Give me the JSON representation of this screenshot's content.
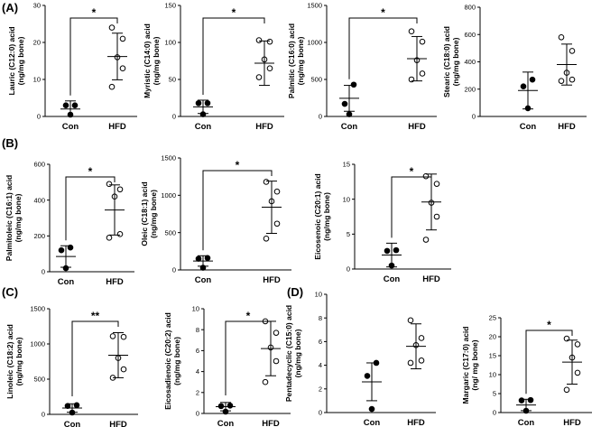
{
  "panels": [
    {
      "letter": "(A)"
    },
    {
      "letter": "(B)"
    },
    {
      "letter": "(C)"
    },
    {
      "letter": "(D)"
    }
  ],
  "chart_data": [
    {
      "type": "scatter",
      "panel": "(A)",
      "ylabel": [
        "Lauric (C12:0) acid",
        "(ng/mg bone)"
      ],
      "ylim": [
        0,
        30
      ],
      "yticks": [
        0,
        10,
        20,
        30
      ],
      "significance": "*",
      "groups": [
        {
          "name": "Con",
          "filled": true,
          "mean": 2.0,
          "sd": 2.2,
          "points": [
            0,
            3,
            3
          ]
        },
        {
          "name": "HFD",
          "filled": false,
          "mean": 16.2,
          "sd": 6.3,
          "points": [
            24,
            21,
            16,
            13,
            8
          ]
        }
      ]
    },
    {
      "type": "scatter",
      "panel": "(A)",
      "ylabel": [
        "Myristic (C14:0) acid",
        "(ng/mg bone)"
      ],
      "ylim": [
        0,
        150
      ],
      "yticks": [
        0,
        50,
        100,
        150
      ],
      "significance": "*",
      "groups": [
        {
          "name": "Con",
          "filled": true,
          "mean": 13,
          "sd": 9,
          "points": [
            3,
            18,
            18
          ]
        },
        {
          "name": "HFD",
          "filled": false,
          "mean": 72,
          "sd": 30,
          "points": [
            103,
            101,
            77,
            65,
            53
          ]
        }
      ]
    },
    {
      "type": "scatter",
      "panel": "(A)",
      "ylabel": [
        "Palmitic (C16:0) acid",
        "(ng/mg bone)"
      ],
      "ylim": [
        0,
        1500
      ],
      "yticks": [
        0,
        500,
        1000,
        1500
      ],
      "significance": "*",
      "groups": [
        {
          "name": "Con",
          "filled": true,
          "mean": 245,
          "sd": 175,
          "points": [
            30,
            170,
            430
          ]
        },
        {
          "name": "HFD",
          "filled": false,
          "mean": 780,
          "sd": 300,
          "points": [
            1150,
            1010,
            760,
            580,
            500
          ]
        }
      ]
    },
    {
      "type": "scatter",
      "panel": "(A)",
      "ylabel": [
        "Stearic (C18:0) acid",
        "(ng/mg bone)"
      ],
      "ylim": [
        0,
        800
      ],
      "yticks": [
        0,
        200,
        400,
        600,
        800
      ],
      "significance": "",
      "groups": [
        {
          "name": "Con",
          "filled": true,
          "mean": 190,
          "sd": 135,
          "points": [
            60,
            220,
            270
          ]
        },
        {
          "name": "HFD",
          "filled": false,
          "mean": 380,
          "sd": 150,
          "points": [
            580,
            480,
            320,
            270,
            260
          ]
        }
      ]
    },
    {
      "type": "scatter",
      "panel": "(B)",
      "ylabel": [
        "Palmitoleic (C16:1) acid",
        "(ng/mg bone)"
      ],
      "ylim": [
        0,
        600
      ],
      "yticks": [
        0,
        200,
        400,
        600
      ],
      "significance": "*",
      "groups": [
        {
          "name": "Con",
          "filled": true,
          "mean": 85,
          "sd": 60,
          "points": [
            20,
            120,
            135
          ]
        },
        {
          "name": "HFD",
          "filled": false,
          "mean": 345,
          "sd": 140,
          "points": [
            490,
            460,
            420,
            210,
            190
          ]
        }
      ]
    },
    {
      "type": "scatter",
      "panel": "(B)",
      "ylabel": [
        "Oleic (C18:1) acid",
        "(ng/mg bone)"
      ],
      "ylim": [
        0,
        1500
      ],
      "yticks": [
        0,
        500,
        1000,
        1500
      ],
      "significance": "*",
      "groups": [
        {
          "name": "Con",
          "filled": true,
          "mean": 120,
          "sd": 70,
          "points": [
            30,
            150,
            160
          ]
        },
        {
          "name": "HFD",
          "filled": false,
          "mean": 840,
          "sd": 350,
          "points": [
            1180,
            1050,
            920,
            620,
            420
          ]
        }
      ]
    },
    {
      "type": "scatter",
      "panel": "(B)",
      "ylabel": [
        "Eicosenoic (C20:1) acid",
        "(ng/mg bone)"
      ],
      "ylim": [
        0,
        15
      ],
      "yticks": [
        0,
        5,
        10,
        15
      ],
      "significance": "*",
      "groups": [
        {
          "name": "Con",
          "filled": true,
          "mean": 2.0,
          "sd": 1.7,
          "points": [
            0.5,
            2.6,
            2.7
          ]
        },
        {
          "name": "HFD",
          "filled": false,
          "mean": 9.6,
          "sd": 4.0,
          "points": [
            13.3,
            12.2,
            9.5,
            7.5,
            4.2
          ]
        }
      ]
    },
    {
      "type": "scatter",
      "panel": "(C)",
      "ylabel": [
        "Linoleic (C18:2) acid",
        "(ng/mg bone)"
      ],
      "ylim": [
        0,
        1500
      ],
      "yticks": [
        0,
        500,
        1000,
        1500
      ],
      "significance": "**",
      "groups": [
        {
          "name": "Con",
          "filled": true,
          "mean": 90,
          "sd": 60,
          "points": [
            20,
            120,
            130
          ]
        },
        {
          "name": "HFD",
          "filled": false,
          "mean": 840,
          "sd": 320,
          "points": [
            1110,
            1100,
            800,
            640,
            520
          ]
        }
      ]
    },
    {
      "type": "scatter",
      "panel": "(C)",
      "ylabel": [
        "Eicosadienoic (C20:2) acid",
        "(ng/mg bone)"
      ],
      "ylim": [
        0,
        10
      ],
      "yticks": [
        0,
        2,
        4,
        6,
        8,
        10
      ],
      "significance": "*",
      "groups": [
        {
          "name": "Con",
          "filled": true,
          "mean": 0.65,
          "sd": 0.4,
          "points": [
            0.15,
            0.7,
            0.75
          ]
        },
        {
          "name": "HFD",
          "filled": false,
          "mean": 6.2,
          "sd": 2.6,
          "points": [
            8.8,
            7.7,
            6.3,
            5.0,
            3.0
          ]
        }
      ]
    },
    {
      "type": "scatter",
      "panel": "(D)",
      "ylabel": [
        "Pentadecyclic (C15:0) acid",
        "(ng/mg bone)"
      ],
      "ylim": [
        0,
        10
      ],
      "yticks": [
        0,
        2,
        4,
        6,
        8,
        10
      ],
      "significance": "",
      "groups": [
        {
          "name": "Con",
          "filled": true,
          "mean": 2.6,
          "sd": 1.6,
          "points": [
            0.3,
            3.1,
            4.2
          ]
        },
        {
          "name": "HFD",
          "filled": false,
          "mean": 5.6,
          "sd": 1.9,
          "points": [
            7.8,
            6.3,
            5.7,
            4.4,
            4.2
          ]
        }
      ]
    },
    {
      "type": "scatter",
      "panel": "(D)",
      "ylabel": [
        "Margaric (C17:0) acid",
        "(ng/ mg bone)"
      ],
      "ylim": [
        0,
        25
      ],
      "yticks": [
        0,
        5,
        10,
        15,
        20,
        25
      ],
      "significance": "*",
      "groups": [
        {
          "name": "Con",
          "filled": true,
          "mean": 2.0,
          "sd": 1.5,
          "points": [
            0.3,
            3.2,
            3.3
          ]
        },
        {
          "name": "HFD",
          "filled": false,
          "mean": 13.3,
          "sd": 5.8,
          "points": [
            19.5,
            18.0,
            14.5,
            10.5,
            6.0
          ]
        }
      ]
    }
  ]
}
